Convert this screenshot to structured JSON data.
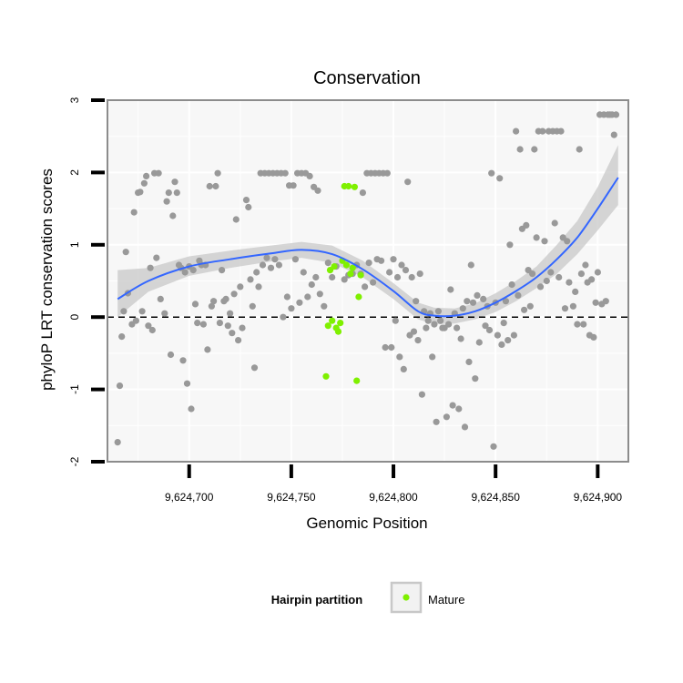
{
  "chart_data": {
    "type": "scatter",
    "title": "Conservation",
    "xlabel": "Genomic Position",
    "ylabel": "phyloP LRT conservation scores",
    "xlim": [
      9624660,
      9624915
    ],
    "ylim": [
      -2,
      3
    ],
    "x_ticks": [
      9624700,
      9624750,
      9624800,
      9624850,
      9624900
    ],
    "x_tick_labels": [
      "9,624,700",
      "9,624,750",
      "9,624,800",
      "9,624,850",
      "9,624,900"
    ],
    "y_ticks": [
      -2,
      -1,
      0,
      1,
      2,
      3
    ],
    "y_tick_labels": [
      "-2",
      "-1",
      "0",
      "1",
      "2",
      "3"
    ],
    "reference_line": {
      "y": 0,
      "style": "dashed",
      "color": "#000000"
    },
    "grid": true,
    "colors": {
      "background": "#f7f7f7",
      "grid": "#ffffff",
      "frame": "#8c8c8c",
      "other_points": "#999999",
      "mature_points": "#7ff000",
      "smooth_line": "#3366ff",
      "confidence_band": "#c8c8c8"
    },
    "legend": {
      "title": "Hairpin partition",
      "position": "bottom",
      "entries": [
        {
          "label": "Mature",
          "color": "#7ff000"
        }
      ]
    },
    "series": [
      {
        "name": "",
        "color": "#999999",
        "points": [
          [
            9624665,
            -1.73
          ],
          [
            9624666,
            -0.95
          ],
          [
            9624667,
            -0.27
          ],
          [
            9624668,
            0.08
          ],
          [
            9624669,
            0.9
          ],
          [
            9624670,
            0.33
          ],
          [
            9624672,
            -0.1
          ],
          [
            9624673,
            1.45
          ],
          [
            9624674,
            -0.05
          ],
          [
            9624675,
            1.72
          ],
          [
            9624676,
            1.73
          ],
          [
            9624677,
            0.08
          ],
          [
            9624678,
            1.85
          ],
          [
            9624679,
            1.95
          ],
          [
            9624680,
            -0.12
          ],
          [
            9624681,
            0.68
          ],
          [
            9624682,
            -0.18
          ],
          [
            9624683,
            1.99
          ],
          [
            9624684,
            0.82
          ],
          [
            9624685,
            1.99
          ],
          [
            9624686,
            0.25
          ],
          [
            9624688,
            0.05
          ],
          [
            9624689,
            1.6
          ],
          [
            9624690,
            1.72
          ],
          [
            9624691,
            -0.52
          ],
          [
            9624692,
            1.4
          ],
          [
            9624693,
            1.87
          ],
          [
            9624694,
            1.72
          ],
          [
            9624695,
            0.72
          ],
          [
            9624696,
            0.68
          ],
          [
            9624697,
            -0.6
          ],
          [
            9624698,
            0.62
          ],
          [
            9624699,
            -0.92
          ],
          [
            9624700,
            0.7
          ],
          [
            9624701,
            -1.27
          ],
          [
            9624702,
            0.65
          ],
          [
            9624703,
            0.18
          ],
          [
            9624704,
            -0.08
          ],
          [
            9624705,
            0.78
          ],
          [
            9624706,
            0.72
          ],
          [
            9624707,
            -0.1
          ],
          [
            9624708,
            0.72
          ],
          [
            9624709,
            -0.45
          ],
          [
            9624710,
            1.81
          ],
          [
            9624711,
            0.15
          ],
          [
            9624712,
            0.22
          ],
          [
            9624713,
            1.81
          ],
          [
            9624714,
            1.99
          ],
          [
            9624715,
            -0.08
          ],
          [
            9624716,
            0.65
          ],
          [
            9624717,
            0.22
          ],
          [
            9624718,
            0.25
          ],
          [
            9624719,
            -0.12
          ],
          [
            9624720,
            0.05
          ],
          [
            9624721,
            -0.22
          ],
          [
            9624722,
            0.32
          ],
          [
            9624723,
            1.35
          ],
          [
            9624724,
            -0.32
          ],
          [
            9624725,
            0.42
          ],
          [
            9624726,
            -0.15
          ],
          [
            9624728,
            1.62
          ],
          [
            9624729,
            1.52
          ],
          [
            9624730,
            0.52
          ],
          [
            9624731,
            0.15
          ],
          [
            9624732,
            -0.7
          ],
          [
            9624733,
            0.62
          ],
          [
            9624734,
            0.42
          ],
          [
            9624735,
            1.99
          ],
          [
            9624736,
            0.72
          ],
          [
            9624737,
            1.99
          ],
          [
            9624738,
            0.82
          ],
          [
            9624739,
            1.99
          ],
          [
            9624740,
            0.68
          ],
          [
            9624741,
            1.99
          ],
          [
            9624742,
            0.8
          ],
          [
            9624743,
            1.99
          ],
          [
            9624744,
            0.72
          ],
          [
            9624745,
            1.99
          ],
          [
            9624746,
            0.0
          ],
          [
            9624747,
            1.99
          ],
          [
            9624748,
            0.28
          ],
          [
            9624749,
            1.82
          ],
          [
            9624750,
            0.12
          ],
          [
            9624751,
            1.82
          ],
          [
            9624752,
            0.8
          ],
          [
            9624753,
            1.99
          ],
          [
            9624754,
            0.2
          ],
          [
            9624755,
            1.99
          ],
          [
            9624756,
            0.62
          ],
          [
            9624757,
            1.99
          ],
          [
            9624758,
            0.28
          ],
          [
            9624759,
            1.95
          ],
          [
            9624760,
            0.45
          ],
          [
            9624761,
            1.8
          ],
          [
            9624762,
            0.55
          ],
          [
            9624763,
            1.75
          ],
          [
            9624764,
            0.32
          ],
          [
            9624766,
            0.15
          ],
          [
            9624768,
            0.75
          ],
          [
            9624770,
            0.55
          ],
          [
            9624772,
            0.7
          ],
          [
            9624776,
            0.52
          ],
          [
            9624778,
            0.58
          ],
          [
            9624780,
            0.6
          ],
          [
            9624782,
            0.72
          ],
          [
            9624784,
            0.6
          ],
          [
            9624785,
            1.72
          ],
          [
            9624786,
            0.42
          ],
          [
            9624787,
            1.99
          ],
          [
            9624788,
            0.75
          ],
          [
            9624789,
            1.99
          ],
          [
            9624790,
            0.48
          ],
          [
            9624791,
            1.99
          ],
          [
            9624792,
            0.8
          ],
          [
            9624793,
            1.99
          ],
          [
            9624794,
            0.78
          ],
          [
            9624795,
            1.99
          ],
          [
            9624796,
            -0.42
          ],
          [
            9624797,
            1.99
          ],
          [
            9624798,
            0.62
          ],
          [
            9624799,
            -0.42
          ],
          [
            9624800,
            0.8
          ],
          [
            9624801,
            -0.05
          ],
          [
            9624802,
            0.55
          ],
          [
            9624803,
            -0.55
          ],
          [
            9624804,
            0.72
          ],
          [
            9624805,
            -0.72
          ],
          [
            9624806,
            0.65
          ],
          [
            9624807,
            1.87
          ],
          [
            9624808,
            -0.25
          ],
          [
            9624809,
            0.55
          ],
          [
            9624810,
            -0.2
          ],
          [
            9624811,
            0.22
          ],
          [
            9624812,
            -0.32
          ],
          [
            9624813,
            0.6
          ],
          [
            9624814,
            -1.07
          ],
          [
            9624815,
            0.08
          ],
          [
            9624816,
            -0.15
          ],
          [
            9624817,
            -0.05
          ],
          [
            9624818,
            0.05
          ],
          [
            9624819,
            -0.55
          ],
          [
            9624820,
            -0.1
          ],
          [
            9624821,
            -1.45
          ],
          [
            9624822,
            0.08
          ],
          [
            9624823,
            -0.05
          ],
          [
            9624824,
            -0.15
          ],
          [
            9624825,
            -0.15
          ],
          [
            9624826,
            -1.38
          ],
          [
            9624827,
            -0.1
          ],
          [
            9624828,
            0.38
          ],
          [
            9624829,
            -1.22
          ],
          [
            9624830,
            0.05
          ],
          [
            9624831,
            -0.15
          ],
          [
            9624832,
            -1.27
          ],
          [
            9624833,
            -0.3
          ],
          [
            9624834,
            0.12
          ],
          [
            9624835,
            -1.52
          ],
          [
            9624836,
            0.22
          ],
          [
            9624837,
            -0.62
          ],
          [
            9624838,
            0.72
          ],
          [
            9624839,
            0.2
          ],
          [
            9624840,
            -0.85
          ],
          [
            9624841,
            0.3
          ],
          [
            9624842,
            -0.35
          ],
          [
            9624844,
            0.25
          ],
          [
            9624845,
            -0.12
          ],
          [
            9624846,
            0.15
          ],
          [
            9624847,
            -0.18
          ],
          [
            9624848,
            1.99
          ],
          [
            9624849,
            -1.79
          ],
          [
            9624850,
            0.2
          ],
          [
            9624851,
            -0.25
          ],
          [
            9624852,
            1.92
          ],
          [
            9624853,
            -0.38
          ],
          [
            9624854,
            -0.08
          ],
          [
            9624855,
            0.22
          ],
          [
            9624856,
            -0.32
          ],
          [
            9624857,
            1.0
          ],
          [
            9624858,
            0.45
          ],
          [
            9624859,
            -0.25
          ],
          [
            9624860,
            2.57
          ],
          [
            9624861,
            0.3
          ],
          [
            9624862,
            2.32
          ],
          [
            9624863,
            1.22
          ],
          [
            9624864,
            0.1
          ],
          [
            9624865,
            1.27
          ],
          [
            9624866,
            0.65
          ],
          [
            9624867,
            0.15
          ],
          [
            9624868,
            0.6
          ],
          [
            9624869,
            2.32
          ],
          [
            9624870,
            1.1
          ],
          [
            9624871,
            2.57
          ],
          [
            9624872,
            0.42
          ],
          [
            9624873,
            2.57
          ],
          [
            9624874,
            1.05
          ],
          [
            9624875,
            0.5
          ],
          [
            9624876,
            2.57
          ],
          [
            9624877,
            0.62
          ],
          [
            9624878,
            2.57
          ],
          [
            9624879,
            1.3
          ],
          [
            9624880,
            2.57
          ],
          [
            9624881,
            0.55
          ],
          [
            9624882,
            2.57
          ],
          [
            9624883,
            1.1
          ],
          [
            9624884,
            0.12
          ],
          [
            9624885,
            1.05
          ],
          [
            9624886,
            0.48
          ],
          [
            9624888,
            0.15
          ],
          [
            9624889,
            0.35
          ],
          [
            9624890,
            -0.1
          ],
          [
            9624891,
            2.32
          ],
          [
            9624892,
            0.6
          ],
          [
            9624893,
            -0.1
          ],
          [
            9624894,
            0.72
          ],
          [
            9624895,
            0.48
          ],
          [
            9624896,
            -0.25
          ],
          [
            9624897,
            0.52
          ],
          [
            9624898,
            -0.28
          ],
          [
            9624899,
            0.2
          ],
          [
            9624900,
            0.62
          ],
          [
            9624901,
            2.8
          ],
          [
            9624902,
            0.18
          ],
          [
            9624903,
            2.8
          ],
          [
            9624904,
            0.22
          ],
          [
            9624905,
            2.8
          ],
          [
            9624906,
            2.8
          ],
          [
            9624907,
            2.8
          ],
          [
            9624908,
            2.52
          ],
          [
            9624909,
            2.8
          ]
        ]
      },
      {
        "name": "Mature",
        "color": "#7ff000",
        "points": [
          [
            9624767,
            -0.82
          ],
          [
            9624768,
            -0.12
          ],
          [
            9624770,
            -0.05
          ],
          [
            9624772,
            -0.15
          ],
          [
            9624773,
            -0.2
          ],
          [
            9624774,
            -0.08
          ],
          [
            9624769,
            0.65
          ],
          [
            9624771,
            0.7
          ],
          [
            9624775,
            0.78
          ],
          [
            9624776,
            1.81
          ],
          [
            9624778,
            1.81
          ],
          [
            9624777,
            0.72
          ],
          [
            9624779,
            0.6
          ],
          [
            9624780,
            0.68
          ],
          [
            9624781,
            1.8
          ],
          [
            9624782,
            -0.88
          ],
          [
            9624783,
            0.28
          ],
          [
            9624784,
            0.58
          ]
        ]
      }
    ],
    "smooth": {
      "method": "loess",
      "x": [
        9624665,
        9624680,
        9624700,
        9624720,
        9624740,
        9624755,
        9624770,
        9624785,
        9624800,
        9624812,
        9624820,
        9624830,
        9624840,
        9624850,
        9624860,
        9624870,
        9624880,
        9624890,
        9624900,
        9624910
      ],
      "y": [
        0.25,
        0.5,
        0.7,
        0.8,
        0.88,
        0.93,
        0.87,
        0.66,
        0.36,
        0.08,
        0.02,
        0.02,
        0.08,
        0.2,
        0.36,
        0.55,
        0.8,
        1.1,
        1.5,
        1.93
      ],
      "lower": [
        0.0,
        0.35,
        0.57,
        0.68,
        0.77,
        0.82,
        0.75,
        0.55,
        0.25,
        -0.03,
        -0.1,
        -0.09,
        -0.03,
        0.07,
        0.22,
        0.4,
        0.6,
        0.87,
        1.2,
        1.55
      ],
      "upper": [
        0.65,
        0.68,
        0.84,
        0.92,
        0.99,
        1.04,
        0.99,
        0.78,
        0.47,
        0.2,
        0.13,
        0.12,
        0.19,
        0.33,
        0.5,
        0.7,
        1.0,
        1.33,
        1.8,
        2.38
      ]
    }
  }
}
